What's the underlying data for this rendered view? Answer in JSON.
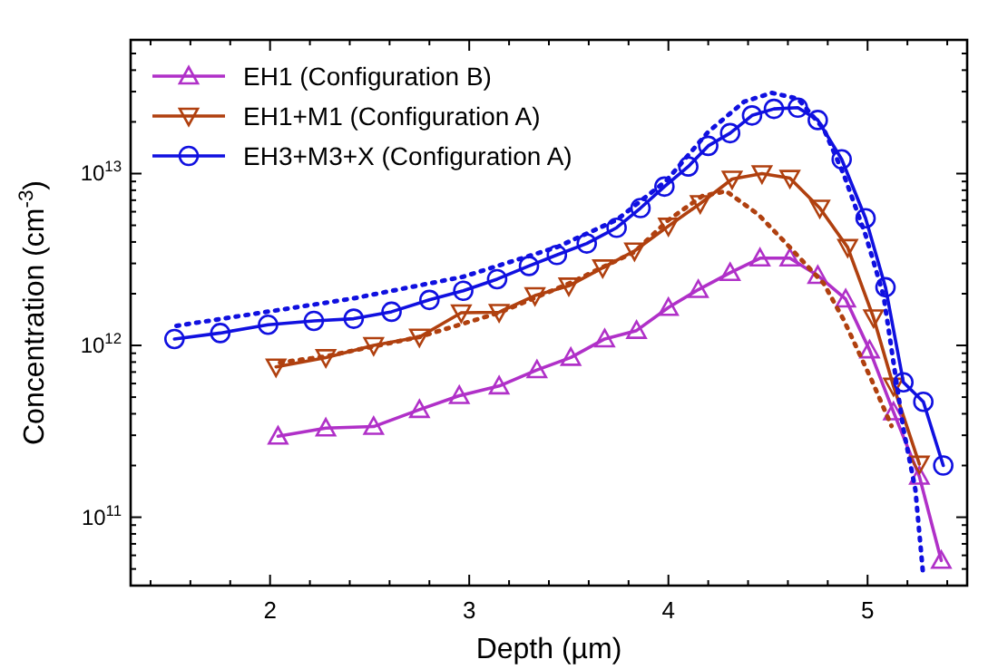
{
  "chart_data": {
    "type": "line",
    "xlabel": "Depth (µm)",
    "ylabel": "Concentration (cm$^{-3}$)",
    "log": "y",
    "legend": "top left",
    "grid": false,
    "xlim": [
      1.3,
      5.5
    ],
    "xticks": [
      {
        "value": 1.4,
        "label": null
      },
      {
        "value": 1.6,
        "label": null
      },
      {
        "value": 1.8,
        "label": null
      },
      2,
      {
        "value": 2.2,
        "label": null
      },
      {
        "value": 2.4,
        "label": null
      },
      {
        "value": 2.6,
        "label": null
      },
      {
        "value": 2.8,
        "label": null
      },
      3,
      {
        "value": 3.2,
        "label": null
      },
      {
        "value": 3.4,
        "label": null
      },
      {
        "value": 3.6,
        "label": null
      },
      {
        "value": 3.8,
        "label": null
      },
      4,
      {
        "value": 4.2,
        "label": null
      },
      {
        "value": 4.4,
        "label": null
      },
      {
        "value": 4.6,
        "label": null
      },
      {
        "value": 4.8,
        "label": null
      },
      5,
      {
        "value": 5.2,
        "label": null
      },
      {
        "value": 5.4,
        "label": null
      }
    ],
    "ylim": [
      40000000000.0,
      60000000000000.0
    ],
    "yticks": [
      {
        "value": 50000000000.0,
        "label": null
      },
      {
        "value": 60000000000.0,
        "label": null
      },
      {
        "value": 70000000000.0,
        "label": null
      },
      {
        "value": 80000000000.0,
        "label": null
      },
      {
        "value": 90000000000.0,
        "label": null
      },
      {
        "value": 100000000000.0,
        "label": "10$^{11}$"
      },
      {
        "value": 200000000000.0,
        "label": null
      },
      {
        "value": 300000000000.0,
        "label": null
      },
      {
        "value": 400000000000.0,
        "label": null
      },
      {
        "value": 500000000000.0,
        "label": null
      },
      {
        "value": 600000000000.0,
        "label": null
      },
      {
        "value": 700000000000.0,
        "label": null
      },
      {
        "value": 800000000000.0,
        "label": null
      },
      {
        "value": 900000000000.0,
        "label": null
      },
      {
        "value": 1000000000000.0,
        "label": "10$^{12}$"
      },
      {
        "value": 2000000000000.0,
        "label": null
      },
      {
        "value": 3000000000000.0,
        "label": null
      },
      {
        "value": 4000000000000.0,
        "label": null
      },
      {
        "value": 5000000000000.0,
        "label": null
      },
      {
        "value": 6000000000000.0,
        "label": null
      },
      {
        "value": 7000000000000.0,
        "label": null
      },
      {
        "value": 8000000000000.0,
        "label": null
      },
      {
        "value": 9000000000000.0,
        "label": null
      },
      {
        "value": 10000000000000.0,
        "label": "10$^{13}$"
      },
      {
        "value": 20000000000000.0,
        "label": null
      },
      {
        "value": 30000000000000.0,
        "label": null
      },
      {
        "value": 40000000000000.0,
        "label": null
      },
      {
        "value": 50000000000000.0,
        "label": null
      }
    ],
    "series": [
      {
        "name": "EH1 (Configuration B)",
        "color": "#b030c8",
        "marker": "triangle",
        "line_style": "solid",
        "x": [
          2.04,
          2.28,
          2.52,
          2.75,
          2.95,
          3.15,
          3.34,
          3.51,
          3.68,
          3.84,
          4.0,
          4.15,
          4.31,
          4.46,
          4.61,
          4.75,
          4.89,
          5.01,
          5.13,
          5.26,
          5.37
        ],
        "values": [
          296000000000.0,
          330000000000.0,
          337000000000.0,
          423000000000.0,
          510000000000.0,
          580000000000.0,
          720000000000.0,
          850000000000.0,
          1090000000000.0,
          1220000000000.0,
          1660000000000.0,
          2110000000000.0,
          2650000000000.0,
          3220000000000.0,
          3220000000000.0,
          2550000000000.0,
          1860000000000.0,
          940000000000.0,
          410000000000.0,
          173000000000.0,
          56000000000.0
        ]
      },
      {
        "name": "EH1+M1 (Configuration A)",
        "color": "#b0400f",
        "marker": "triangle-down",
        "line_style": "solid",
        "x": [
          2.03,
          2.28,
          2.52,
          2.75,
          2.96,
          3.15,
          3.33,
          3.5,
          3.67,
          3.83,
          4.0,
          4.16,
          4.32,
          4.47,
          4.61,
          4.76,
          4.9,
          5.03,
          5.13,
          5.26
        ],
        "values": [
          750000000000.0,
          850000000000.0,
          1000000000000.0,
          1120000000000.0,
          1550000000000.0,
          1560000000000.0,
          1950000000000.0,
          2220000000000.0,
          2830000000000.0,
          3550000000000.0,
          4950000000000.0,
          6700000000000.0,
          9300000000000.0,
          10000000000000.0,
          9400000000000.0,
          6300000000000.0,
          3720000000000.0,
          1450000000000.0,
          580000000000.0,
          204000000000.0
        ]
      },
      {
        "name": "EH3+M3+X (Configuration A)",
        "color": "#1010e0",
        "marker": "circle",
        "line_style": "solid",
        "x": [
          1.52,
          1.75,
          1.99,
          2.22,
          2.42,
          2.61,
          2.8,
          2.97,
          3.14,
          3.3,
          3.44,
          3.59,
          3.74,
          3.86,
          3.98,
          4.1,
          4.2,
          4.31,
          4.42,
          4.53,
          4.65,
          4.75,
          4.87,
          4.99,
          5.09,
          5.18,
          5.28,
          5.38
        ],
        "values": [
          1090000000000.0,
          1180000000000.0,
          1320000000000.0,
          1390000000000.0,
          1430000000000.0,
          1570000000000.0,
          1840000000000.0,
          2080000000000.0,
          2430000000000.0,
          2900000000000.0,
          3360000000000.0,
          3920000000000.0,
          4840000000000.0,
          6300000000000.0,
          8400000000000.0,
          11000000000000.0,
          14500000000000.0,
          17200000000000.0,
          21800000000000.0,
          23800000000000.0,
          24200000000000.0,
          20500000000000.0,
          12100000000000.0,
          5500000000000.0,
          2180000000000.0,
          610000000000.0,
          470000000000.0,
          200000000000.0
        ]
      },
      {
        "color": "#1010e0",
        "marker": "none",
        "line_style": "dotted",
        "x": [
          1.53,
          2.41,
          2.97,
          3.44,
          3.74,
          3.99,
          4.2,
          4.38,
          4.52,
          4.65,
          4.78,
          4.88,
          4.99,
          5.08,
          5.18,
          5.24,
          5.28
        ],
        "values": [
          1300000000000.0,
          1870000000000.0,
          2510000000000.0,
          3730000000000.0,
          5370000000000.0,
          9100000000000.0,
          17500000000000.0,
          26200000000000.0,
          29500000000000.0,
          27300000000000.0,
          18200000000000.0,
          9900000000000.0,
          4390000000000.0,
          1960000000000.0,
          326000000000.0,
          145000000000.0,
          45000000000.0
        ]
      },
      {
        "color": "#b0400f",
        "marker": "none",
        "line_style": "dotted",
        "x": [
          2.05,
          2.27,
          2.75,
          3.15,
          3.5,
          3.83,
          4.0,
          4.17,
          4.29,
          4.45,
          4.58,
          4.78,
          4.88,
          5.02,
          5.12
        ],
        "values": [
          795000000000.0,
          860000000000.0,
          1120000000000.0,
          1550000000000.0,
          2290000000000.0,
          3500000000000.0,
          5370000000000.0,
          7400000000000.0,
          7900000000000.0,
          5800000000000.0,
          4050000000000.0,
          2290000000000.0,
          1410000000000.0,
          630000000000.0,
          340000000000.0
        ]
      }
    ]
  }
}
